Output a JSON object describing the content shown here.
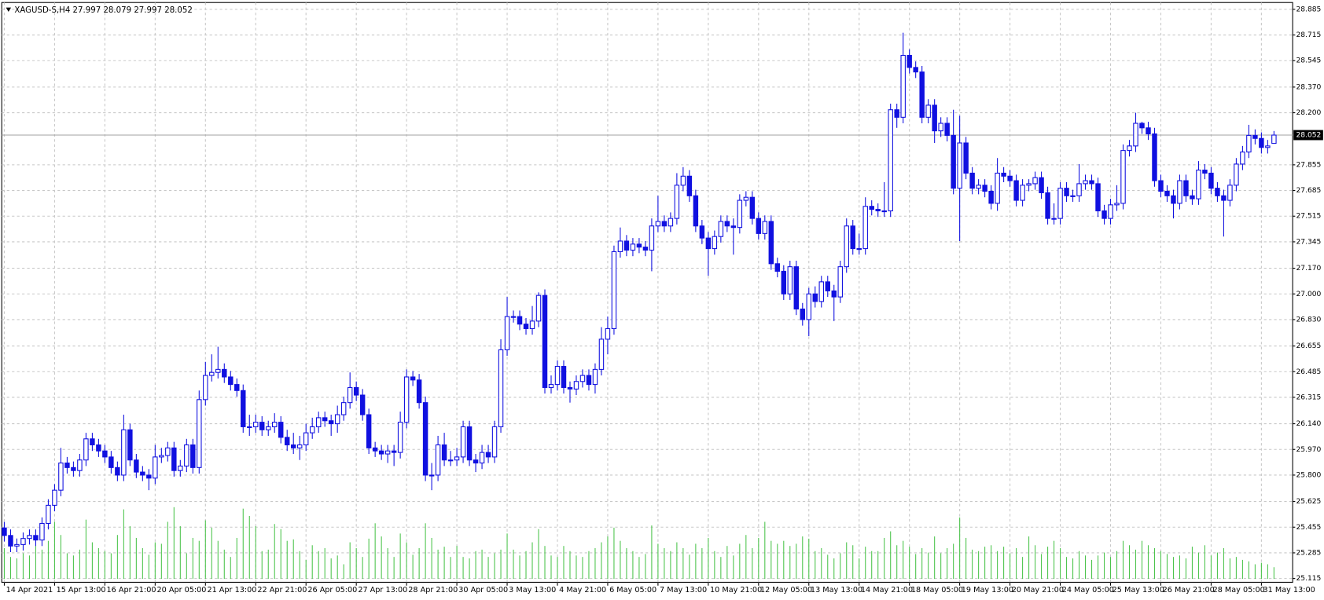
{
  "chart_data": {
    "type": "candlestick",
    "title": "XAGUSD-S,H4  27.997 28.079 27.997 28.052",
    "categories": [
      "14 Apr 2021",
      null,
      null,
      null,
      null,
      null,
      null,
      null,
      "15 Apr 13:00",
      null,
      null,
      null,
      null,
      null,
      null,
      null,
      "16 Apr 21:00",
      null,
      null,
      null,
      null,
      null,
      null,
      null,
      "20 Apr 05:00",
      null,
      null,
      null,
      null,
      null,
      null,
      null,
      "21 Apr 13:00",
      null,
      null,
      null,
      null,
      null,
      null,
      null,
      "22 Apr 21:00",
      null,
      null,
      null,
      null,
      null,
      null,
      null,
      "26 Apr 05:00",
      null,
      null,
      null,
      null,
      null,
      null,
      null,
      "27 Apr 13:00",
      null,
      null,
      null,
      null,
      null,
      null,
      null,
      "28 Apr 21:00",
      null,
      null,
      null,
      null,
      null,
      null,
      null,
      "30 Apr 05:00",
      null,
      null,
      null,
      null,
      null,
      null,
      null,
      "3 May 13:00",
      null,
      null,
      null,
      null,
      null,
      null,
      null,
      "4 May 21:00",
      null,
      null,
      null,
      null,
      null,
      null,
      null,
      "6 May 05:00",
      null,
      null,
      null,
      null,
      null,
      null,
      null,
      "7 May 13:00",
      null,
      null,
      null,
      null,
      null,
      null,
      null,
      "10 May 21:00",
      null,
      null,
      null,
      null,
      null,
      null,
      null,
      "12 May 05:00",
      null,
      null,
      null,
      null,
      null,
      null,
      null,
      "13 May 13:00",
      null,
      null,
      null,
      null,
      null,
      null,
      null,
      "14 May 21:00",
      null,
      null,
      null,
      null,
      null,
      null,
      null,
      "18 May 05:00",
      null,
      null,
      null,
      null,
      null,
      null,
      null,
      "19 May 13:00",
      null,
      null,
      null,
      null,
      null,
      null,
      null,
      "20 May 21:00",
      null,
      null,
      null,
      null,
      null,
      null,
      null,
      "24 May 05:00",
      null,
      null,
      null,
      null,
      null,
      null,
      null,
      "25 May 13:00",
      null,
      null,
      null,
      null,
      null,
      null,
      null,
      "26 May 21:00",
      null,
      null,
      null,
      null,
      null,
      null,
      null,
      "28 May 05:00",
      null,
      null,
      null,
      null,
      null,
      null,
      null,
      "31 May 13:00",
      null,
      null
    ],
    "open": [
      25.45,
      25.4,
      25.33,
      25.34,
      25.38,
      25.4,
      25.37,
      25.48,
      25.6,
      25.7,
      25.88,
      25.85,
      25.83,
      25.9,
      26.04,
      26.0,
      25.96,
      25.92,
      25.85,
      25.8,
      26.1,
      25.9,
      25.82,
      25.8,
      25.78,
      25.92,
      25.93,
      25.98,
      25.83,
      25.86,
      26.0,
      25.85,
      26.3,
      26.46,
      26.48,
      26.5,
      26.45,
      26.4,
      26.36,
      26.12,
      26.12,
      26.15,
      26.1,
      26.12,
      26.15,
      26.05,
      26.0,
      25.98,
      26.0,
      26.08,
      26.12,
      26.18,
      26.16,
      26.14,
      26.2,
      26.28,
      26.38,
      26.33,
      26.2,
      25.98,
      25.96,
      25.94,
      25.96,
      25.95,
      26.15,
      26.45,
      26.43,
      26.28,
      25.8,
      25.8,
      26.0,
      25.9,
      25.9,
      25.92,
      26.12,
      25.9,
      25.88,
      25.95,
      25.92,
      26.12,
      26.63,
      26.85,
      26.85,
      26.8,
      26.77,
      26.82,
      26.99,
      26.38,
      26.4,
      26.52,
      26.38,
      26.37,
      26.42,
      26.46,
      26.4,
      26.5,
      26.7,
      26.77,
      27.28,
      27.35,
      27.29,
      27.33,
      27.31,
      27.29,
      27.45,
      27.48,
      27.45,
      27.5,
      27.72,
      27.78,
      27.65,
      27.45,
      27.37,
      27.3,
      27.38,
      27.48,
      27.45,
      27.44,
      27.62,
      27.64,
      27.5,
      27.4,
      27.48,
      27.2,
      27.15,
      27.0,
      27.18,
      26.9,
      26.83,
      27.0,
      26.95,
      27.08,
      27.02,
      26.98,
      27.18,
      27.45,
      27.3,
      27.3,
      27.58,
      27.56,
      27.55,
      27.55,
      28.22,
      28.17,
      28.58,
      28.5,
      28.47,
      28.17,
      28.25,
      28.08,
      28.13,
      28.05,
      27.7,
      28.0,
      27.8,
      27.7,
      27.72,
      27.68,
      27.6,
      27.8,
      27.78,
      27.75,
      27.62,
      27.72,
      27.73,
      27.77,
      27.67,
      27.5,
      27.5,
      27.7,
      27.65,
      27.65,
      27.73,
      27.75,
      27.73,
      27.55,
      27.5,
      27.59,
      27.6,
      27.95,
      27.98,
      28.13,
      28.1,
      28.06,
      27.75,
      27.68,
      27.65,
      27.6,
      27.75,
      27.65,
      27.63,
      27.82,
      27.8,
      27.7,
      27.65,
      27.62,
      27.72,
      27.86,
      27.94,
      28.05,
      28.03,
      27.97,
      27.997
    ],
    "high": [
      25.49,
      25.44,
      25.38,
      25.42,
      25.44,
      25.44,
      25.52,
      25.64,
      25.74,
      25.98,
      25.92,
      25.89,
      25.94,
      26.08,
      26.08,
      26.04,
      26.0,
      25.96,
      25.89,
      26.2,
      26.14,
      25.94,
      25.86,
      25.84,
      26.0,
      25.98,
      26.02,
      26.02,
      25.9,
      26.04,
      26.04,
      26.36,
      26.55,
      26.6,
      26.65,
      26.54,
      26.49,
      26.44,
      26.4,
      26.2,
      26.2,
      26.19,
      26.16,
      26.21,
      26.19,
      26.1,
      26.08,
      26.06,
      26.14,
      26.18,
      26.22,
      26.22,
      26.2,
      26.26,
      26.32,
      26.48,
      26.42,
      26.37,
      26.24,
      26.02,
      26.0,
      26.0,
      26.0,
      26.22,
      26.5,
      26.49,
      26.47,
      26.32,
      25.88,
      26.06,
      26.08,
      25.96,
      25.98,
      26.16,
      26.16,
      25.94,
      26.0,
      26.0,
      26.16,
      26.7,
      26.98,
      26.89,
      26.89,
      26.84,
      26.92,
      27.01,
      27.03,
      26.46,
      26.56,
      26.56,
      26.42,
      26.46,
      26.5,
      26.5,
      26.54,
      26.78,
      26.85,
      27.32,
      27.44,
      27.39,
      27.37,
      27.37,
      27.35,
      27.5,
      27.65,
      27.52,
      27.54,
      27.8,
      27.84,
      27.82,
      27.69,
      27.49,
      27.41,
      27.42,
      27.52,
      27.52,
      27.5,
      27.66,
      27.68,
      27.68,
      27.54,
      27.52,
      27.52,
      27.24,
      27.19,
      27.22,
      27.22,
      26.94,
      27.04,
      27.05,
      27.12,
      27.12,
      27.06,
      27.22,
      27.5,
      27.49,
      27.4,
      27.64,
      27.62,
      27.6,
      27.74,
      28.26,
      28.26,
      28.73,
      28.62,
      28.54,
      28.51,
      28.29,
      28.29,
      28.17,
      28.17,
      28.22,
      28.18,
      28.04,
      27.84,
      27.76,
      27.76,
      27.72,
      27.9,
      27.84,
      27.82,
      27.79,
      27.76,
      27.76,
      27.81,
      27.81,
      27.71,
      27.6,
      27.74,
      27.74,
      27.69,
      27.86,
      27.79,
      27.79,
      27.77,
      27.59,
      27.63,
      27.72,
      27.99,
      28.02,
      28.2,
      28.14,
      28.14,
      28.1,
      27.79,
      27.72,
      27.69,
      27.79,
      27.79,
      27.69,
      27.88,
      27.86,
      27.84,
      27.74,
      27.69,
      27.76,
      27.9,
      27.98,
      28.12,
      28.09,
      28.07,
      28.02,
      28.079
    ],
    "low": [
      25.36,
      25.29,
      25.29,
      25.3,
      25.34,
      25.33,
      25.33,
      25.44,
      25.56,
      25.66,
      25.81,
      25.79,
      25.79,
      25.86,
      25.96,
      25.92,
      25.88,
      25.81,
      25.76,
      25.76,
      25.86,
      25.78,
      25.76,
      25.7,
      25.74,
      25.88,
      25.89,
      25.79,
      25.79,
      25.82,
      25.81,
      25.81,
      26.26,
      26.42,
      26.44,
      26.41,
      26.36,
      26.32,
      26.08,
      26.06,
      26.08,
      26.06,
      26.06,
      26.08,
      26.01,
      25.96,
      25.94,
      25.9,
      25.96,
      26.04,
      26.08,
      26.12,
      26.06,
      26.08,
      26.16,
      26.24,
      26.29,
      26.16,
      25.94,
      25.92,
      25.9,
      25.88,
      25.86,
      25.91,
      26.11,
      26.39,
      26.24,
      25.76,
      25.7,
      25.76,
      25.86,
      25.86,
      25.86,
      25.88,
      25.86,
      25.82,
      25.84,
      25.88,
      25.88,
      26.08,
      26.59,
      26.81,
      26.76,
      26.73,
      26.73,
      26.78,
      26.34,
      26.34,
      26.36,
      26.34,
      26.28,
      26.33,
      26.38,
      26.36,
      26.34,
      26.46,
      26.6,
      26.73,
      27.24,
      27.25,
      27.25,
      27.27,
      27.25,
      27.15,
      27.41,
      27.41,
      27.41,
      27.46,
      27.68,
      27.61,
      27.41,
      27.33,
      27.12,
      27.26,
      27.34,
      27.41,
      27.26,
      27.4,
      27.58,
      27.46,
      27.36,
      27.36,
      27.16,
      27.11,
      26.96,
      26.96,
      26.86,
      26.79,
      26.72,
      26.91,
      26.91,
      26.98,
      26.82,
      26.94,
      27.14,
      27.26,
      27.26,
      27.26,
      27.52,
      27.51,
      27.51,
      27.51,
      28.1,
      28.13,
      28.46,
      28.43,
      28.13,
      28.13,
      28.0,
      28.04,
      28.01,
      27.66,
      27.35,
      27.76,
      27.66,
      27.66,
      27.64,
      27.56,
      27.55,
      27.74,
      27.71,
      27.58,
      27.58,
      27.68,
      27.69,
      27.63,
      27.46,
      27.46,
      27.46,
      27.61,
      27.61,
      27.61,
      27.69,
      27.69,
      27.51,
      27.46,
      27.46,
      27.55,
      27.56,
      27.91,
      27.94,
      28.06,
      28.02,
      27.71,
      27.64,
      27.61,
      27.5,
      27.56,
      27.61,
      27.59,
      27.59,
      27.76,
      27.66,
      27.61,
      27.38,
      27.58,
      27.68,
      27.82,
      27.9,
      27.99,
      27.93,
      27.93,
      27.997
    ],
    "close": [
      25.4,
      25.33,
      25.34,
      25.38,
      25.4,
      25.37,
      25.48,
      25.6,
      25.7,
      25.88,
      25.85,
      25.83,
      25.9,
      26.04,
      26.0,
      25.96,
      25.92,
      25.85,
      25.8,
      26.1,
      25.9,
      25.82,
      25.8,
      25.78,
      25.92,
      25.93,
      25.98,
      25.83,
      25.86,
      26.0,
      25.85,
      26.3,
      26.46,
      26.48,
      26.5,
      26.45,
      26.4,
      26.36,
      26.12,
      26.12,
      26.15,
      26.1,
      26.12,
      26.15,
      26.05,
      26.0,
      25.98,
      26.0,
      26.08,
      26.12,
      26.18,
      26.16,
      26.14,
      26.2,
      26.28,
      26.38,
      26.33,
      26.2,
      25.98,
      25.96,
      25.94,
      25.96,
      25.95,
      26.15,
      26.45,
      26.43,
      26.28,
      25.8,
      25.8,
      26.0,
      25.9,
      25.9,
      25.92,
      26.12,
      25.9,
      25.88,
      25.95,
      25.92,
      26.12,
      26.63,
      26.85,
      26.85,
      26.8,
      26.77,
      26.82,
      26.99,
      26.38,
      26.4,
      26.52,
      26.38,
      26.37,
      26.42,
      26.46,
      26.4,
      26.5,
      26.7,
      26.77,
      27.28,
      27.35,
      27.29,
      27.33,
      27.31,
      27.29,
      27.45,
      27.48,
      27.45,
      27.5,
      27.72,
      27.78,
      27.65,
      27.45,
      27.37,
      27.3,
      27.38,
      27.48,
      27.45,
      27.44,
      27.62,
      27.64,
      27.5,
      27.4,
      27.48,
      27.2,
      27.15,
      27.0,
      27.18,
      26.9,
      26.83,
      27.0,
      26.95,
      27.08,
      27.02,
      26.98,
      27.18,
      27.45,
      27.3,
      27.3,
      27.58,
      27.56,
      27.55,
      27.55,
      28.22,
      28.17,
      28.58,
      28.5,
      28.47,
      28.17,
      28.25,
      28.08,
      28.13,
      28.05,
      27.7,
      28.0,
      27.8,
      27.7,
      27.72,
      27.68,
      27.6,
      27.8,
      27.78,
      27.75,
      27.62,
      27.72,
      27.73,
      27.77,
      27.67,
      27.5,
      27.5,
      27.7,
      27.65,
      27.65,
      27.73,
      27.75,
      27.73,
      27.55,
      27.5,
      27.59,
      27.6,
      27.95,
      27.98,
      28.13,
      28.1,
      28.06,
      27.75,
      27.68,
      27.65,
      27.6,
      27.75,
      27.65,
      27.63,
      27.82,
      27.8,
      27.7,
      27.65,
      27.62,
      27.72,
      27.86,
      27.94,
      28.05,
      28.03,
      27.97,
      27.98,
      28.052
    ],
    "volume": [
      420,
      300,
      280,
      350,
      320,
      450,
      400,
      520,
      780,
      600,
      350,
      320,
      400,
      810,
      500,
      420,
      380,
      350,
      600,
      950,
      720,
      560,
      420,
      330,
      500,
      480,
      780,
      980,
      720,
      350,
      560,
      520,
      800,
      700,
      520,
      400,
      300,
      560,
      960,
      860,
      720,
      380,
      400,
      750,
      680,
      520,
      540,
      380,
      260,
      460,
      380,
      420,
      280,
      320,
      200,
      500,
      420,
      300,
      550,
      760,
      580,
      420,
      300,
      620,
      500,
      330,
      420,
      760,
      560,
      400,
      440,
      300,
      450,
      300,
      280,
      380,
      400,
      300,
      350,
      400,
      620,
      400,
      320,
      380,
      500,
      680,
      450,
      320,
      300,
      450,
      380,
      320,
      300,
      380,
      420,
      500,
      580,
      700,
      520,
      420,
      380,
      300,
      340,
      730,
      480,
      420,
      380,
      500,
      420,
      330,
      480,
      420,
      560,
      380,
      300,
      450,
      320,
      480,
      600,
      420,
      560,
      780,
      520,
      480,
      520,
      450,
      480,
      580,
      550,
      380,
      420,
      330,
      280,
      350,
      500,
      460,
      280,
      440,
      380,
      380,
      560,
      650,
      460,
      520,
      440,
      340,
      420,
      360,
      580,
      350,
      420,
      480,
      840,
      560,
      400,
      380,
      440,
      460,
      380,
      440,
      350,
      420,
      300,
      580,
      460,
      340,
      440,
      520,
      420,
      300,
      280,
      380,
      320,
      260,
      320,
      360,
      300,
      380,
      520,
      460,
      400,
      520,
      460,
      420,
      380,
      340,
      300,
      320,
      280,
      440,
      360,
      460,
      320,
      360,
      420,
      280,
      300,
      260,
      240,
      200,
      220,
      200,
      160
    ],
    "last_price": 28.052,
    "ylim": [
      25.09,
      28.93
    ],
    "yticks": [
      28.885,
      28.715,
      28.545,
      {
        "value": 28.37,
        "label": "28.370"
      },
      {
        "value": 28.2,
        "label": "28.200"
      },
      27.855,
      27.685,
      27.515,
      27.345,
      {
        "value": 27.17,
        "label": "27.170"
      },
      {
        "value": 27,
        "label": "27.000"
      },
      {
        "value": 26.83,
        "label": "26.830"
      },
      26.655,
      26.485,
      26.315,
      {
        "value": 26.14,
        "label": "26.140"
      },
      {
        "value": 25.97,
        "label": "25.970"
      },
      {
        "value": 25.8,
        "label": "25.800"
      },
      25.625,
      25.455,
      25.285,
      25.115
    ],
    "grid": true,
    "up_color": "#ffffff",
    "down_color": "#1010e0",
    "outline_color": "#1010e0",
    "volume_color": "#4cc44c"
  }
}
